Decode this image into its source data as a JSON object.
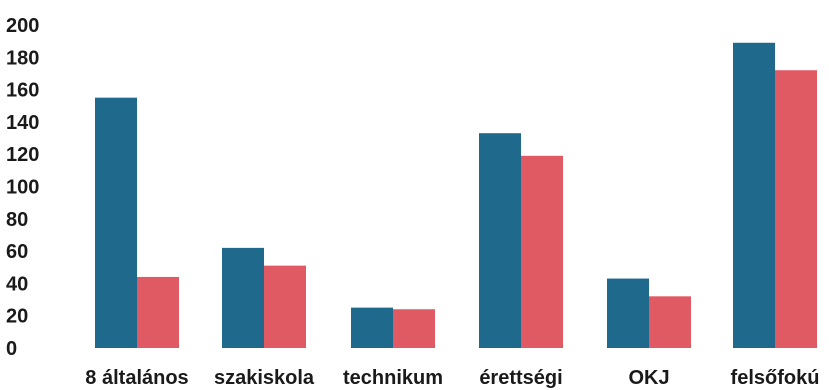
{
  "chart_data": {
    "type": "bar",
    "categories": [
      "8 általános",
      "szakiskola",
      "technikum",
      "érettségi",
      "OKJ",
      "felsőfokú"
    ],
    "series": [
      {
        "values": [
          155,
          62,
          25,
          133,
          43,
          189
        ],
        "color": "#1f6a8c"
      },
      {
        "values": [
          44,
          51,
          24,
          119,
          32,
          172
        ],
        "color": "#e05a63"
      }
    ],
    "yticks": [
      0,
      20,
      40,
      60,
      80,
      100,
      120,
      140,
      160,
      180,
      200
    ],
    "ylim": [
      0,
      200
    ],
    "title": "",
    "xlabel": "",
    "ylabel": "",
    "grid": false,
    "legend": "none"
  }
}
